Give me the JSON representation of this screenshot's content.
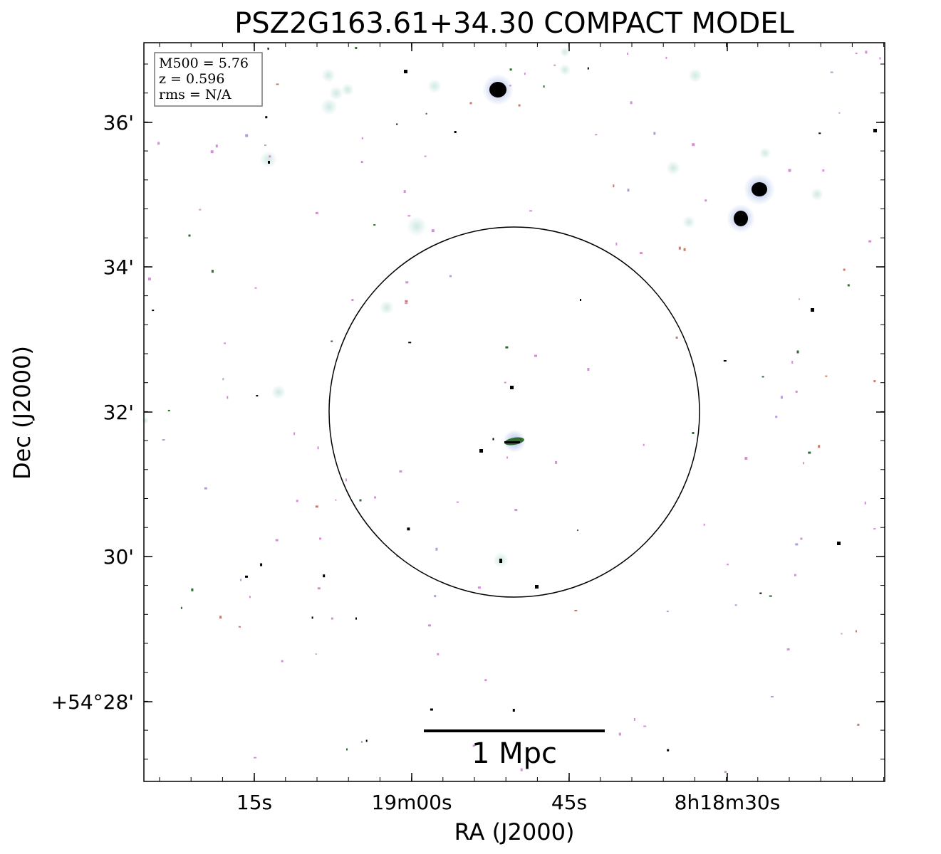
{
  "figure": {
    "title": "PSZ2G163.61+34.30 COMPACT MODEL",
    "xlabel": "RA (J2000)",
    "ylabel": "Dec (J2000)",
    "info_box": [
      "M500 = 5.76",
      "z = 0.596",
      "rms = N/A"
    ],
    "scale_bar_label": "1 Mpc",
    "ra_tick_labels": [
      "15s",
      "19m00s",
      "45s",
      "8h18m30s"
    ],
    "dec_tick_labels": [
      "36'",
      "34'",
      "32'",
      "30'",
      "+54°28'"
    ],
    "colors": {
      "ink": "#000000",
      "halo": "#cfe9e4",
      "halo_blue": "#9fb3e6",
      "pink": "#d58fd6",
      "green": "#2f6a2f"
    }
  }
}
